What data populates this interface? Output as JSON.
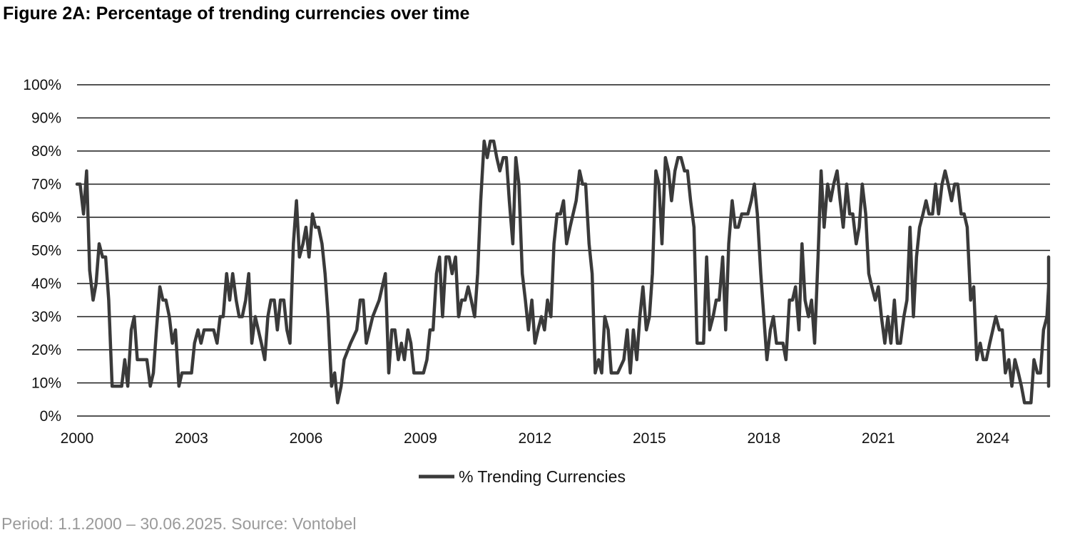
{
  "figure_title": "Figure 2A: Percentage of trending currencies over time",
  "note": "Period: 1.1.2000 – 30.06.2025. Source: Vontobel",
  "colors": {
    "line": "#3a3a3a",
    "grid": "#1a1a1a",
    "axis": "#111111"
  },
  "chart_data": {
    "type": "line",
    "title": "Figure 2A: Percentage of trending currencies over time",
    "xlabel": "",
    "ylabel": "",
    "xlim": [
      2000,
      2025.5
    ],
    "ylim": [
      0,
      100
    ],
    "x_ticks": [
      2000,
      2003,
      2006,
      2009,
      2012,
      2015,
      2018,
      2021,
      2024
    ],
    "x_tick_labels": [
      "2000",
      "2003",
      "2006",
      "2009",
      "2012",
      "2015",
      "2018",
      "2021",
      "2024"
    ],
    "y_ticks": [
      0,
      10,
      20,
      30,
      40,
      50,
      60,
      70,
      80,
      90,
      100
    ],
    "y_tick_labels": [
      "0%",
      "10%",
      "20%",
      "30%",
      "40%",
      "50%",
      "60%",
      "70%",
      "80%",
      "90%",
      "100%"
    ],
    "grid": "horizontal",
    "legend_position": "bottom-center",
    "series": [
      {
        "name": "% Trending Currencies",
        "points": [
          [
            2000.0,
            70
          ],
          [
            2000.08,
            70
          ],
          [
            2000.17,
            61
          ],
          [
            2000.25,
            74
          ],
          [
            2000.33,
            44
          ],
          [
            2000.42,
            35
          ],
          [
            2000.5,
            40
          ],
          [
            2000.58,
            52
          ],
          [
            2000.67,
            48
          ],
          [
            2000.75,
            48
          ],
          [
            2000.83,
            35
          ],
          [
            2000.92,
            9
          ],
          [
            2001.0,
            9
          ],
          [
            2001.08,
            9
          ],
          [
            2001.17,
            9
          ],
          [
            2001.25,
            17
          ],
          [
            2001.33,
            9
          ],
          [
            2001.42,
            26
          ],
          [
            2001.5,
            30
          ],
          [
            2001.58,
            17
          ],
          [
            2001.67,
            17
          ],
          [
            2001.75,
            17
          ],
          [
            2001.83,
            17
          ],
          [
            2001.92,
            9
          ],
          [
            2002.0,
            13
          ],
          [
            2002.08,
            26
          ],
          [
            2002.17,
            39
          ],
          [
            2002.25,
            35
          ],
          [
            2002.33,
            35
          ],
          [
            2002.42,
            30
          ],
          [
            2002.5,
            22
          ],
          [
            2002.58,
            26
          ],
          [
            2002.67,
            9
          ],
          [
            2002.75,
            13
          ],
          [
            2002.83,
            13
          ],
          [
            2002.92,
            13
          ],
          [
            2003.0,
            13
          ],
          [
            2003.08,
            22
          ],
          [
            2003.17,
            26
          ],
          [
            2003.25,
            22
          ],
          [
            2003.33,
            26
          ],
          [
            2003.42,
            26
          ],
          [
            2003.5,
            26
          ],
          [
            2003.58,
            26
          ],
          [
            2003.67,
            22
          ],
          [
            2003.75,
            30
          ],
          [
            2003.83,
            30
          ],
          [
            2003.92,
            43
          ],
          [
            2004.0,
            35
          ],
          [
            2004.08,
            43
          ],
          [
            2004.17,
            35
          ],
          [
            2004.25,
            30
          ],
          [
            2004.33,
            30
          ],
          [
            2004.42,
            35
          ],
          [
            2004.5,
            43
          ],
          [
            2004.58,
            22
          ],
          [
            2004.67,
            30
          ],
          [
            2004.75,
            26
          ],
          [
            2004.83,
            22
          ],
          [
            2004.92,
            17
          ],
          [
            2005.0,
            30
          ],
          [
            2005.08,
            35
          ],
          [
            2005.17,
            35
          ],
          [
            2005.25,
            26
          ],
          [
            2005.33,
            35
          ],
          [
            2005.42,
            35
          ],
          [
            2005.5,
            26
          ],
          [
            2005.58,
            22
          ],
          [
            2005.67,
            52
          ],
          [
            2005.75,
            65
          ],
          [
            2005.83,
            48
          ],
          [
            2005.92,
            52
          ],
          [
            2006.0,
            57
          ],
          [
            2006.08,
            48
          ],
          [
            2006.17,
            61
          ],
          [
            2006.25,
            57
          ],
          [
            2006.33,
            57
          ],
          [
            2006.42,
            52
          ],
          [
            2006.5,
            43
          ],
          [
            2006.58,
            30
          ],
          [
            2006.67,
            9
          ],
          [
            2006.75,
            13
          ],
          [
            2006.83,
            4
          ],
          [
            2006.92,
            9
          ],
          [
            2007.0,
            17
          ],
          [
            2007.17,
            22
          ],
          [
            2007.33,
            26
          ],
          [
            2007.42,
            35
          ],
          [
            2007.5,
            35
          ],
          [
            2007.58,
            22
          ],
          [
            2007.75,
            30
          ],
          [
            2007.92,
            35
          ],
          [
            2008.0,
            39
          ],
          [
            2008.08,
            43
          ],
          [
            2008.17,
            13
          ],
          [
            2008.25,
            26
          ],
          [
            2008.33,
            26
          ],
          [
            2008.42,
            17
          ],
          [
            2008.5,
            22
          ],
          [
            2008.58,
            17
          ],
          [
            2008.67,
            26
          ],
          [
            2008.75,
            22
          ],
          [
            2008.83,
            13
          ],
          [
            2008.92,
            13
          ],
          [
            2009.0,
            13
          ],
          [
            2009.08,
            13
          ],
          [
            2009.17,
            17
          ],
          [
            2009.25,
            26
          ],
          [
            2009.33,
            26
          ],
          [
            2009.42,
            43
          ],
          [
            2009.5,
            48
          ],
          [
            2009.58,
            30
          ],
          [
            2009.67,
            48
          ],
          [
            2009.75,
            48
          ],
          [
            2009.83,
            43
          ],
          [
            2009.92,
            48
          ],
          [
            2010.0,
            30
          ],
          [
            2010.08,
            35
          ],
          [
            2010.17,
            35
          ],
          [
            2010.25,
            39
          ],
          [
            2010.33,
            35
          ],
          [
            2010.42,
            30
          ],
          [
            2010.5,
            43
          ],
          [
            2010.58,
            65
          ],
          [
            2010.67,
            83
          ],
          [
            2010.75,
            78
          ],
          [
            2010.83,
            83
          ],
          [
            2010.92,
            83
          ],
          [
            2011.0,
            78
          ],
          [
            2011.08,
            74
          ],
          [
            2011.17,
            78
          ],
          [
            2011.25,
            78
          ],
          [
            2011.33,
            65
          ],
          [
            2011.42,
            52
          ],
          [
            2011.5,
            78
          ],
          [
            2011.58,
            70
          ],
          [
            2011.67,
            43
          ],
          [
            2011.75,
            35
          ],
          [
            2011.83,
            26
          ],
          [
            2011.92,
            35
          ],
          [
            2012.0,
            22
          ],
          [
            2012.08,
            26
          ],
          [
            2012.17,
            30
          ],
          [
            2012.25,
            26
          ],
          [
            2012.33,
            35
          ],
          [
            2012.42,
            30
          ],
          [
            2012.5,
            52
          ],
          [
            2012.58,
            61
          ],
          [
            2012.67,
            61
          ],
          [
            2012.75,
            65
          ],
          [
            2012.83,
            52
          ],
          [
            2012.92,
            57
          ],
          [
            2013.08,
            65
          ],
          [
            2013.17,
            74
          ],
          [
            2013.25,
            70
          ],
          [
            2013.33,
            70
          ],
          [
            2013.42,
            52
          ],
          [
            2013.5,
            43
          ],
          [
            2013.58,
            13
          ],
          [
            2013.67,
            17
          ],
          [
            2013.75,
            13
          ],
          [
            2013.83,
            30
          ],
          [
            2013.92,
            26
          ],
          [
            2014.0,
            13
          ],
          [
            2014.17,
            13
          ],
          [
            2014.33,
            17
          ],
          [
            2014.42,
            26
          ],
          [
            2014.5,
            13
          ],
          [
            2014.58,
            26
          ],
          [
            2014.67,
            17
          ],
          [
            2014.75,
            30
          ],
          [
            2014.83,
            39
          ],
          [
            2014.92,
            26
          ],
          [
            2015.0,
            30
          ],
          [
            2015.08,
            43
          ],
          [
            2015.17,
            74
          ],
          [
            2015.25,
            70
          ],
          [
            2015.33,
            52
          ],
          [
            2015.42,
            78
          ],
          [
            2015.5,
            74
          ],
          [
            2015.58,
            65
          ],
          [
            2015.67,
            74
          ],
          [
            2015.75,
            78
          ],
          [
            2015.83,
            78
          ],
          [
            2015.92,
            74
          ],
          [
            2016.0,
            74
          ],
          [
            2016.08,
            65
          ],
          [
            2016.17,
            57
          ],
          [
            2016.25,
            22
          ],
          [
            2016.33,
            22
          ],
          [
            2016.42,
            22
          ],
          [
            2016.5,
            48
          ],
          [
            2016.58,
            26
          ],
          [
            2016.67,
            30
          ],
          [
            2016.75,
            35
          ],
          [
            2016.83,
            35
          ],
          [
            2016.92,
            48
          ],
          [
            2017.0,
            26
          ],
          [
            2017.08,
            52
          ],
          [
            2017.17,
            65
          ],
          [
            2017.25,
            57
          ],
          [
            2017.33,
            57
          ],
          [
            2017.42,
            61
          ],
          [
            2017.5,
            61
          ],
          [
            2017.58,
            61
          ],
          [
            2017.67,
            65
          ],
          [
            2017.75,
            70
          ],
          [
            2017.83,
            61
          ],
          [
            2017.92,
            43
          ],
          [
            2018.0,
            30
          ],
          [
            2018.08,
            17
          ],
          [
            2018.17,
            26
          ],
          [
            2018.25,
            30
          ],
          [
            2018.33,
            22
          ],
          [
            2018.42,
            22
          ],
          [
            2018.5,
            22
          ],
          [
            2018.58,
            17
          ],
          [
            2018.67,
            35
          ],
          [
            2018.75,
            35
          ],
          [
            2018.83,
            39
          ],
          [
            2018.92,
            26
          ],
          [
            2019.0,
            52
          ],
          [
            2019.08,
            35
          ],
          [
            2019.17,
            30
          ],
          [
            2019.25,
            35
          ],
          [
            2019.33,
            22
          ],
          [
            2019.42,
            48
          ],
          [
            2019.5,
            74
          ],
          [
            2019.58,
            57
          ],
          [
            2019.67,
            70
          ],
          [
            2019.75,
            65
          ],
          [
            2019.83,
            70
          ],
          [
            2019.92,
            74
          ],
          [
            2020.0,
            65
          ],
          [
            2020.08,
            57
          ],
          [
            2020.17,
            70
          ],
          [
            2020.25,
            61
          ],
          [
            2020.33,
            61
          ],
          [
            2020.42,
            52
          ],
          [
            2020.5,
            57
          ],
          [
            2020.58,
            70
          ],
          [
            2020.67,
            61
          ],
          [
            2020.75,
            43
          ],
          [
            2020.83,
            39
          ],
          [
            2020.92,
            35
          ],
          [
            2021.0,
            39
          ],
          [
            2021.08,
            30
          ],
          [
            2021.17,
            22
          ],
          [
            2021.25,
            30
          ],
          [
            2021.33,
            22
          ],
          [
            2021.42,
            35
          ],
          [
            2021.5,
            22
          ],
          [
            2021.58,
            22
          ],
          [
            2021.67,
            30
          ],
          [
            2021.75,
            35
          ],
          [
            2021.83,
            57
          ],
          [
            2021.92,
            30
          ],
          [
            2022.0,
            48
          ],
          [
            2022.08,
            57
          ],
          [
            2022.17,
            61
          ],
          [
            2022.25,
            65
          ],
          [
            2022.33,
            61
          ],
          [
            2022.42,
            61
          ],
          [
            2022.5,
            70
          ],
          [
            2022.58,
            61
          ],
          [
            2022.67,
            70
          ],
          [
            2022.75,
            74
          ],
          [
            2022.83,
            70
          ],
          [
            2022.92,
            65
          ],
          [
            2023.0,
            70
          ],
          [
            2023.08,
            70
          ],
          [
            2023.17,
            61
          ],
          [
            2023.25,
            61
          ],
          [
            2023.33,
            57
          ],
          [
            2023.42,
            35
          ],
          [
            2023.5,
            39
          ],
          [
            2023.58,
            17
          ],
          [
            2023.67,
            22
          ],
          [
            2023.75,
            17
          ],
          [
            2023.83,
            17
          ],
          [
            2023.92,
            22
          ],
          [
            2024.0,
            26
          ],
          [
            2024.08,
            30
          ],
          [
            2024.17,
            26
          ],
          [
            2024.25,
            26
          ],
          [
            2024.33,
            13
          ],
          [
            2024.42,
            17
          ],
          [
            2024.5,
            9
          ],
          [
            2024.58,
            17
          ],
          [
            2024.67,
            13
          ],
          [
            2024.75,
            9
          ],
          [
            2024.83,
            4
          ],
          [
            2024.92,
            4
          ],
          [
            2025.0,
            4
          ],
          [
            2025.08,
            17
          ],
          [
            2025.17,
            13
          ],
          [
            2025.25,
            13
          ],
          [
            2025.33,
            26
          ],
          [
            2025.42,
            30
          ],
          [
            2025.5,
            39
          ],
          [
            2025.58,
            48
          ],
          [
            2025.67,
            35
          ],
          [
            2025.75,
            48
          ],
          [
            2025.83,
            17
          ],
          [
            2025.92,
            22
          ],
          [
            2026.0,
            13
          ],
          [
            2026.08,
            9
          ]
        ]
      }
    ]
  }
}
